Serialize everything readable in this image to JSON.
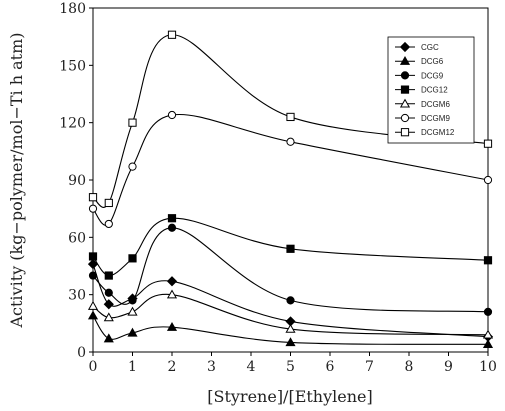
{
  "chart_data": {
    "type": "line",
    "xlabel": "[Styrene]/[Ethylene]",
    "ylabel": "Activity (kg−polymer/mol−Ti h atm)",
    "xlim": [
      0,
      10
    ],
    "ylim": [
      0,
      180
    ],
    "xticks": [
      "0",
      "1",
      "2",
      "3",
      "4",
      "5",
      "6",
      "7",
      "8",
      "9",
      "10"
    ],
    "yticks": [
      "0",
      "30",
      "60",
      "90",
      "120",
      "150",
      "180"
    ],
    "grid": false,
    "legend_position": "top-right",
    "x": [
      0,
      0.4,
      1,
      2,
      5,
      10
    ],
    "series": [
      {
        "name": "CGC",
        "marker": "diamond-filled",
        "values": [
          46,
          25,
          28,
          37,
          16,
          8
        ]
      },
      {
        "name": "DCG6",
        "marker": "triangle-filled",
        "values": [
          19,
          7,
          10,
          13,
          5,
          4
        ]
      },
      {
        "name": "DCG9",
        "marker": "circle-filled",
        "values": [
          40,
          31,
          27,
          65,
          27,
          21
        ]
      },
      {
        "name": "DCG12",
        "marker": "square-filled",
        "values": [
          50,
          40,
          49,
          70,
          54,
          48
        ]
      },
      {
        "name": "DCGM6",
        "marker": "triangle-open",
        "values": [
          24,
          18,
          21,
          30,
          12,
          9
        ]
      },
      {
        "name": "DCGM9",
        "marker": "circle-open",
        "values": [
          75,
          67,
          97,
          124,
          110,
          90
        ]
      },
      {
        "name": "DCGM12",
        "marker": "square-open",
        "values": [
          81,
          78,
          120,
          166,
          123,
          109
        ]
      }
    ]
  }
}
